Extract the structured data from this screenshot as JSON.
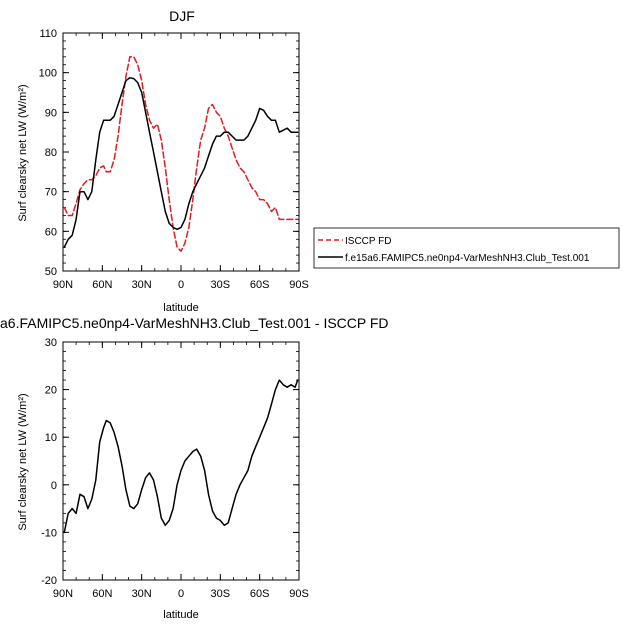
{
  "chart_data": [
    {
      "type": "line",
      "title": "DJF",
      "xlabel": "latitude",
      "ylabel": "Surf clearsky net LW (W/m²)",
      "ylim": [
        50,
        110
      ],
      "yticks": [
        50,
        60,
        70,
        80,
        90,
        100,
        110
      ],
      "xlim": [
        -90,
        90
      ],
      "xticks": [
        -90,
        -60,
        -30,
        0,
        30,
        60,
        90
      ],
      "xticklabels": [
        "90N",
        "60N",
        "30N",
        "0",
        "30S",
        "60S",
        "90S"
      ],
      "legend_position": "right",
      "series": [
        {
          "name": "ISCCP FD",
          "color": "#e41a1c",
          "dash": "dashed",
          "x": [
            -89,
            -86,
            -83,
            -80,
            -77,
            -74,
            -71,
            -68,
            -65,
            -62,
            -59,
            -57,
            -54,
            -51,
            -48,
            -45,
            -42,
            -39,
            -36,
            -33,
            -30,
            -27,
            -24,
            -21,
            -18,
            -15,
            -12,
            -9,
            -6,
            -3,
            0,
            3,
            6,
            9,
            12,
            15,
            18,
            21,
            24,
            27,
            30,
            33,
            36,
            39,
            42,
            45,
            48,
            51,
            54,
            57,
            60,
            63,
            66,
            69,
            72,
            75,
            78,
            81,
            84,
            87,
            89
          ],
          "y": [
            66,
            64,
            64,
            67,
            70.5,
            72,
            73,
            73,
            74,
            76,
            76.5,
            75,
            75,
            78,
            84,
            92,
            99,
            104,
            104,
            102,
            98,
            92,
            88,
            86,
            87,
            83,
            76,
            68,
            61,
            56,
            55,
            57,
            61,
            68,
            76,
            83,
            86,
            91,
            92,
            90,
            89,
            86,
            84,
            81,
            78,
            76,
            75,
            73,
            71,
            70,
            68,
            68,
            67,
            65,
            66,
            63,
            63,
            63,
            63,
            63,
            63
          ]
        },
        {
          "name": "f.e15a6.FAMIPC5.ne0np4-VarMeshNH3.Club_Test.001",
          "color": "#000000",
          "dash": "solid",
          "x": [
            -89,
            -86,
            -83,
            -80,
            -77,
            -74,
            -71,
            -68,
            -65,
            -62,
            -59,
            -57,
            -54,
            -51,
            -48,
            -45,
            -42,
            -39,
            -36,
            -33,
            -30,
            -27,
            -24,
            -21,
            -18,
            -15,
            -12,
            -9,
            -6,
            -3,
            0,
            3,
            6,
            9,
            12,
            15,
            18,
            21,
            24,
            27,
            30,
            33,
            36,
            39,
            42,
            45,
            48,
            51,
            54,
            57,
            60,
            63,
            66,
            69,
            72,
            75,
            78,
            81,
            84,
            87,
            89
          ],
          "y": [
            56,
            58,
            59,
            63,
            70,
            70,
            68,
            70,
            78,
            85,
            88,
            88,
            88,
            89,
            92,
            95,
            98,
            98.7,
            98.5,
            97.5,
            95,
            90,
            85,
            80,
            75,
            70,
            65,
            62,
            61,
            60.5,
            61,
            63,
            67,
            70,
            72,
            74,
            76,
            79,
            82,
            84,
            84,
            85,
            85,
            84,
            83,
            83,
            83,
            84,
            86,
            88,
            91,
            90.5,
            89,
            88,
            88,
            85,
            85.5,
            86,
            85,
            85,
            85
          ]
        }
      ]
    },
    {
      "type": "line",
      "title": "a6.FAMIPC5.ne0np4-VarMeshNH3.Club_Test.001 - ISCCP FD",
      "xlabel": "latitude",
      "ylabel": "Surf clearsky net LW (W/m²)",
      "ylim": [
        -20,
        30
      ],
      "yticks": [
        -20,
        -10,
        0,
        10,
        20,
        30
      ],
      "xlim": [
        -90,
        90
      ],
      "xticks": [
        -90,
        -60,
        -30,
        0,
        30,
        60,
        90
      ],
      "xticklabels": [
        "90N",
        "60N",
        "30N",
        "0",
        "30S",
        "60S",
        "90S"
      ],
      "series": [
        {
          "name": "",
          "color": "#000000",
          "dash": "solid",
          "x": [
            -89,
            -86,
            -83,
            -80,
            -77,
            -74,
            -71,
            -68,
            -65,
            -62,
            -59,
            -57,
            -54,
            -51,
            -48,
            -45,
            -42,
            -39,
            -36,
            -33,
            -30,
            -27,
            -24,
            -21,
            -18,
            -15,
            -12,
            -9,
            -6,
            -3,
            0,
            3,
            6,
            9,
            12,
            15,
            18,
            21,
            24,
            27,
            30,
            33,
            36,
            39,
            42,
            45,
            48,
            51,
            54,
            57,
            60,
            63,
            66,
            69,
            72,
            75,
            78,
            81,
            84,
            87,
            89
          ],
          "y": [
            -10,
            -6,
            -5,
            -6,
            -2,
            -2.5,
            -5,
            -3,
            1,
            9,
            12,
            13.5,
            13,
            11,
            8,
            4,
            -1,
            -4.5,
            -5,
            -4,
            -1,
            1.5,
            2.5,
            1,
            -2.5,
            -7,
            -8.5,
            -7.5,
            -5,
            0,
            3,
            5,
            6,
            7,
            7.5,
            6,
            3,
            -2,
            -5.5,
            -7,
            -7.5,
            -8.5,
            -8,
            -5,
            -2,
            0,
            1.5,
            3,
            6,
            8,
            10,
            12,
            14,
            17,
            20,
            22,
            21,
            20.5,
            21,
            20.5,
            22
          ]
        }
      ]
    }
  ]
}
